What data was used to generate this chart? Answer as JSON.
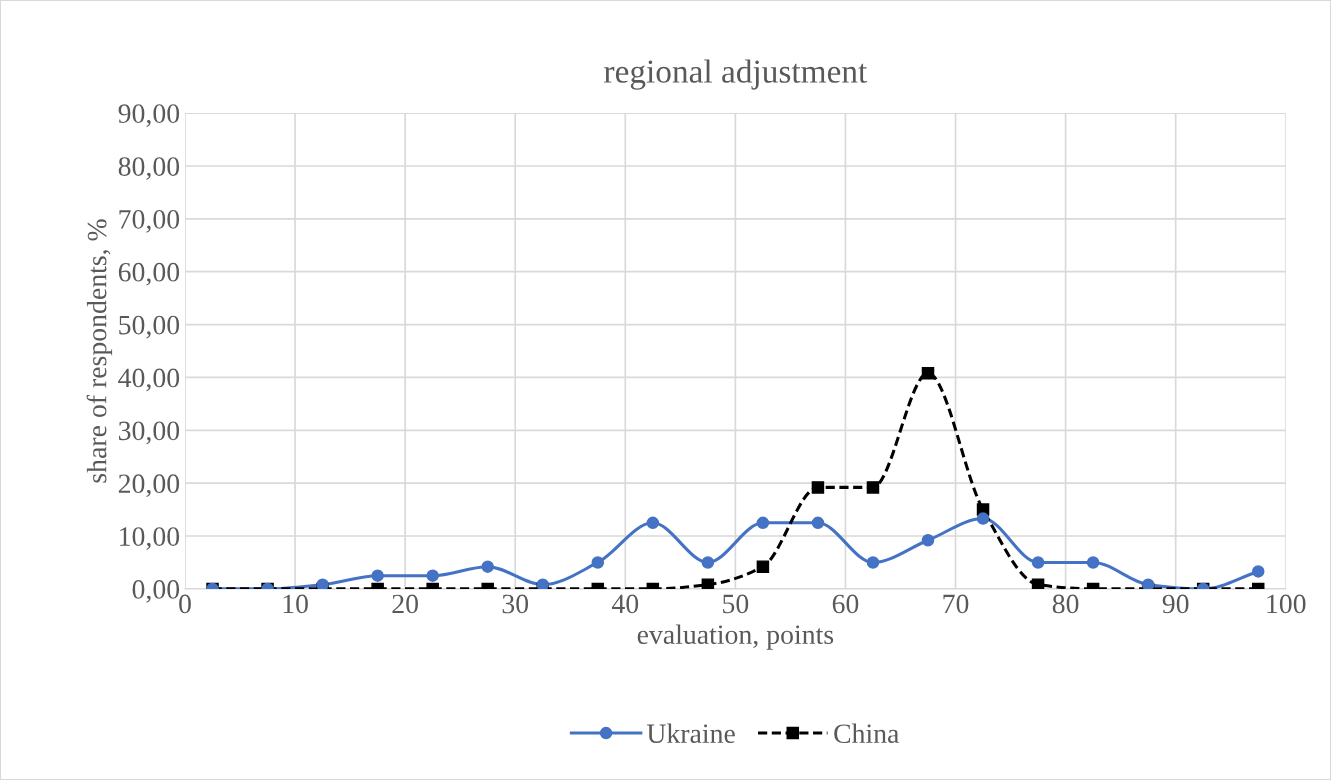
{
  "chart_data": {
    "type": "line",
    "title": "regional adjustment",
    "xlabel": "evaluation, points",
    "ylabel": "share of respondents, %",
    "x": [
      2.5,
      7.5,
      12.5,
      17.5,
      22.5,
      27.5,
      32.5,
      37.5,
      42.5,
      47.5,
      52.5,
      57.5,
      62.5,
      67.5,
      72.5,
      77.5,
      82.5,
      87.5,
      92.5,
      97.5
    ],
    "series": [
      {
        "name": "Ukraine",
        "color": "#4472c4",
        "marker": "circle",
        "line_style": "solid",
        "values": [
          0,
          0,
          0.8,
          2.5,
          2.5,
          4.2,
          0.8,
          5,
          12.5,
          5,
          12.5,
          12.5,
          5,
          9.2,
          13.3,
          5,
          5,
          0.8,
          0,
          3.3
        ]
      },
      {
        "name": "China",
        "color": "#000000",
        "marker": "square",
        "line_style": "dashed",
        "values": [
          0,
          0,
          0,
          0,
          0,
          0,
          0,
          0,
          0,
          0.8,
          4.2,
          19.2,
          19.2,
          40.8,
          15,
          0.8,
          0,
          0,
          0,
          0
        ]
      }
    ],
    "xlim": [
      0,
      100
    ],
    "xticks": [
      0,
      10,
      20,
      30,
      40,
      50,
      60,
      70,
      80,
      90,
      100
    ],
    "ylim": [
      0,
      90
    ],
    "yticks": [
      {
        "value": 0,
        "label": "0,00"
      },
      {
        "value": 10,
        "label": "10,00"
      },
      {
        "value": 20,
        "label": "20,00"
      },
      {
        "value": 30,
        "label": "30,00"
      },
      {
        "value": 40,
        "label": "40,00"
      },
      {
        "value": 50,
        "label": "50,00"
      },
      {
        "value": 60,
        "label": "60,00"
      },
      {
        "value": 70,
        "label": "70,00"
      },
      {
        "value": 80,
        "label": "80,00"
      },
      {
        "value": 90,
        "label": "90,00"
      }
    ],
    "grid": true,
    "legend": "bottom"
  }
}
